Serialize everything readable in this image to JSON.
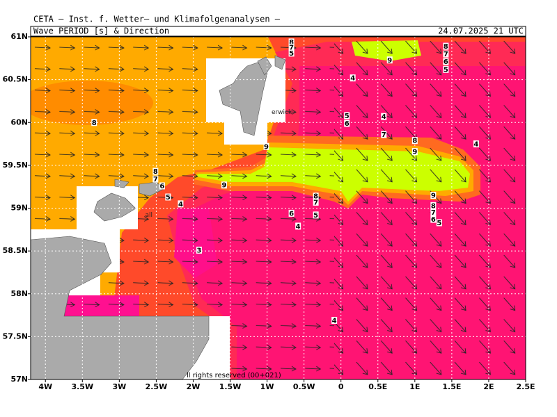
{
  "header": "CETA — Inst. f. Wetter— und Klimafolgenanalysen —",
  "title": "Wave PERIOD [s] & Direction",
  "timestamp": "24.07.2025 21 UTC",
  "copyright": "ll rights reserved (00+021)",
  "xlim": [
    -4.2,
    2.5
  ],
  "ylim": [
    57,
    61
  ],
  "xticks": [
    {
      "value": -4,
      "label": "4W"
    },
    {
      "value": -3.5,
      "label": "3.5W"
    },
    {
      "value": -3,
      "label": "3W"
    },
    {
      "value": -2.5,
      "label": "2.5W"
    },
    {
      "value": -2,
      "label": "2W"
    },
    {
      "value": -1.5,
      "label": "1.5W"
    },
    {
      "value": -1,
      "label": "1W"
    },
    {
      "value": -0.5,
      "label": "0.5W"
    },
    {
      "value": 0,
      "label": "0"
    },
    {
      "value": 0.5,
      "label": "0.5E"
    },
    {
      "value": 1,
      "label": "1E"
    },
    {
      "value": 1.5,
      "label": "1.5E"
    },
    {
      "value": 2,
      "label": "2E"
    },
    {
      "value": 2.5,
      "label": "2.5E"
    }
  ],
  "yticks": [
    {
      "value": 57,
      "label": "57N"
    },
    {
      "value": 57.5,
      "label": "57.5N"
    },
    {
      "value": 58,
      "label": "58N"
    },
    {
      "value": 58.5,
      "label": "58.5N"
    },
    {
      "value": 59,
      "label": "59N"
    },
    {
      "value": 59.5,
      "label": "59.5N"
    },
    {
      "value": 60,
      "label": "60N"
    },
    {
      "value": 60.5,
      "label": "60.5N"
    },
    {
      "value": 61,
      "label": "61N"
    }
  ],
  "place_labels": [
    {
      "lon": -0.94,
      "lat": 60.12,
      "text": "erwick"
    },
    {
      "lon": -2.65,
      "lat": 58.92,
      "text": "all"
    }
  ],
  "contour_labels": [
    {
      "lon": -0.67,
      "lat": 60.94,
      "value": 8
    },
    {
      "lon": -0.67,
      "lat": 60.88,
      "value": 7
    },
    {
      "lon": -0.67,
      "lat": 60.81,
      "value": 5
    },
    {
      "lon": 0.66,
      "lat": 60.73,
      "value": 9
    },
    {
      "lon": 0.16,
      "lat": 60.52,
      "value": 4
    },
    {
      "lon": 1.42,
      "lat": 60.89,
      "value": 8
    },
    {
      "lon": 1.42,
      "lat": 60.8,
      "value": 7
    },
    {
      "lon": 1.42,
      "lat": 60.71,
      "value": 6
    },
    {
      "lon": 1.42,
      "lat": 60.62,
      "value": 5
    },
    {
      "lon": -3.34,
      "lat": 60.0,
      "value": 8
    },
    {
      "lon": 0.08,
      "lat": 60.08,
      "value": 5
    },
    {
      "lon": 0.08,
      "lat": 59.99,
      "value": 6
    },
    {
      "lon": 0.58,
      "lat": 60.07,
      "value": 4
    },
    {
      "lon": 0.58,
      "lat": 59.86,
      "value": 7
    },
    {
      "lon": 1.0,
      "lat": 59.79,
      "value": 8
    },
    {
      "lon": 1.0,
      "lat": 59.66,
      "value": 9
    },
    {
      "lon": 1.83,
      "lat": 59.75,
      "value": 4
    },
    {
      "lon": -1.01,
      "lat": 59.72,
      "value": 9
    },
    {
      "lon": -1.58,
      "lat": 59.27,
      "value": 9
    },
    {
      "lon": -2.51,
      "lat": 59.43,
      "value": 8
    },
    {
      "lon": -2.51,
      "lat": 59.34,
      "value": 7
    },
    {
      "lon": -2.42,
      "lat": 59.26,
      "value": 6
    },
    {
      "lon": -2.34,
      "lat": 59.13,
      "value": 5
    },
    {
      "lon": -2.17,
      "lat": 59.05,
      "value": 4
    },
    {
      "lon": -0.34,
      "lat": 59.14,
      "value": 8
    },
    {
      "lon": -0.34,
      "lat": 59.07,
      "value": 7
    },
    {
      "lon": -0.67,
      "lat": 58.94,
      "value": 6
    },
    {
      "lon": -0.34,
      "lat": 58.92,
      "value": 5
    },
    {
      "lon": -0.58,
      "lat": 58.79,
      "value": 4
    },
    {
      "lon": 1.25,
      "lat": 59.15,
      "value": 9
    },
    {
      "lon": 1.25,
      "lat": 59.03,
      "value": 8
    },
    {
      "lon": 1.25,
      "lat": 58.95,
      "value": 7
    },
    {
      "lon": 1.25,
      "lat": 58.87,
      "value": 6
    },
    {
      "lon": 1.33,
      "lat": 58.83,
      "value": 5
    },
    {
      "lon": -1.92,
      "lat": 58.51,
      "value": 3
    },
    {
      "lon": -0.09,
      "lat": 57.69,
      "value": 4
    }
  ]
}
